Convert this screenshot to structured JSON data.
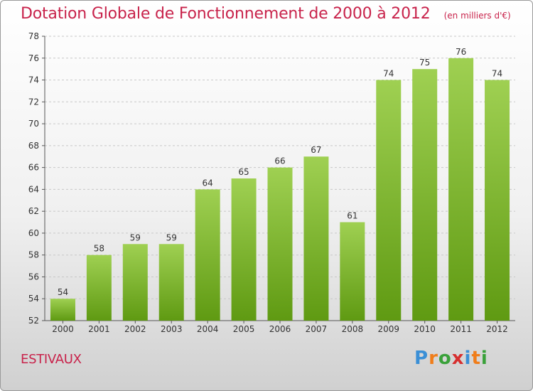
{
  "title": "Dotation Globale de Fonctionnement de 2000 à 2012",
  "subtitle": "(en milliers d'€)",
  "commune": "ESTIVAUX",
  "logo": {
    "letters": [
      "P",
      "r",
      "o",
      "x",
      "i",
      "t",
      "i"
    ],
    "colors": [
      "#3a8fd6",
      "#f07d1a",
      "#3aa13a",
      "#d62f2f",
      "#3a8fd6",
      "#f07d1a",
      "#3aa13a"
    ]
  },
  "colors": {
    "bar_light": "#9fd052",
    "bar_dark": "#5f9a12",
    "accent": "#c8234b"
  },
  "chart_data": {
    "type": "bar",
    "categories": [
      "2000",
      "2001",
      "2002",
      "2003",
      "2004",
      "2005",
      "2006",
      "2007",
      "2008",
      "2009",
      "2010",
      "2011",
      "2012"
    ],
    "values": [
      54,
      58,
      59,
      59,
      64,
      65,
      66,
      67,
      61,
      74,
      75,
      76,
      74
    ],
    "ylim": [
      52,
      78
    ],
    "yticks": [
      52,
      54,
      56,
      58,
      60,
      62,
      64,
      66,
      68,
      70,
      72,
      74,
      76,
      78
    ],
    "grid": true,
    "data_labels": true
  }
}
